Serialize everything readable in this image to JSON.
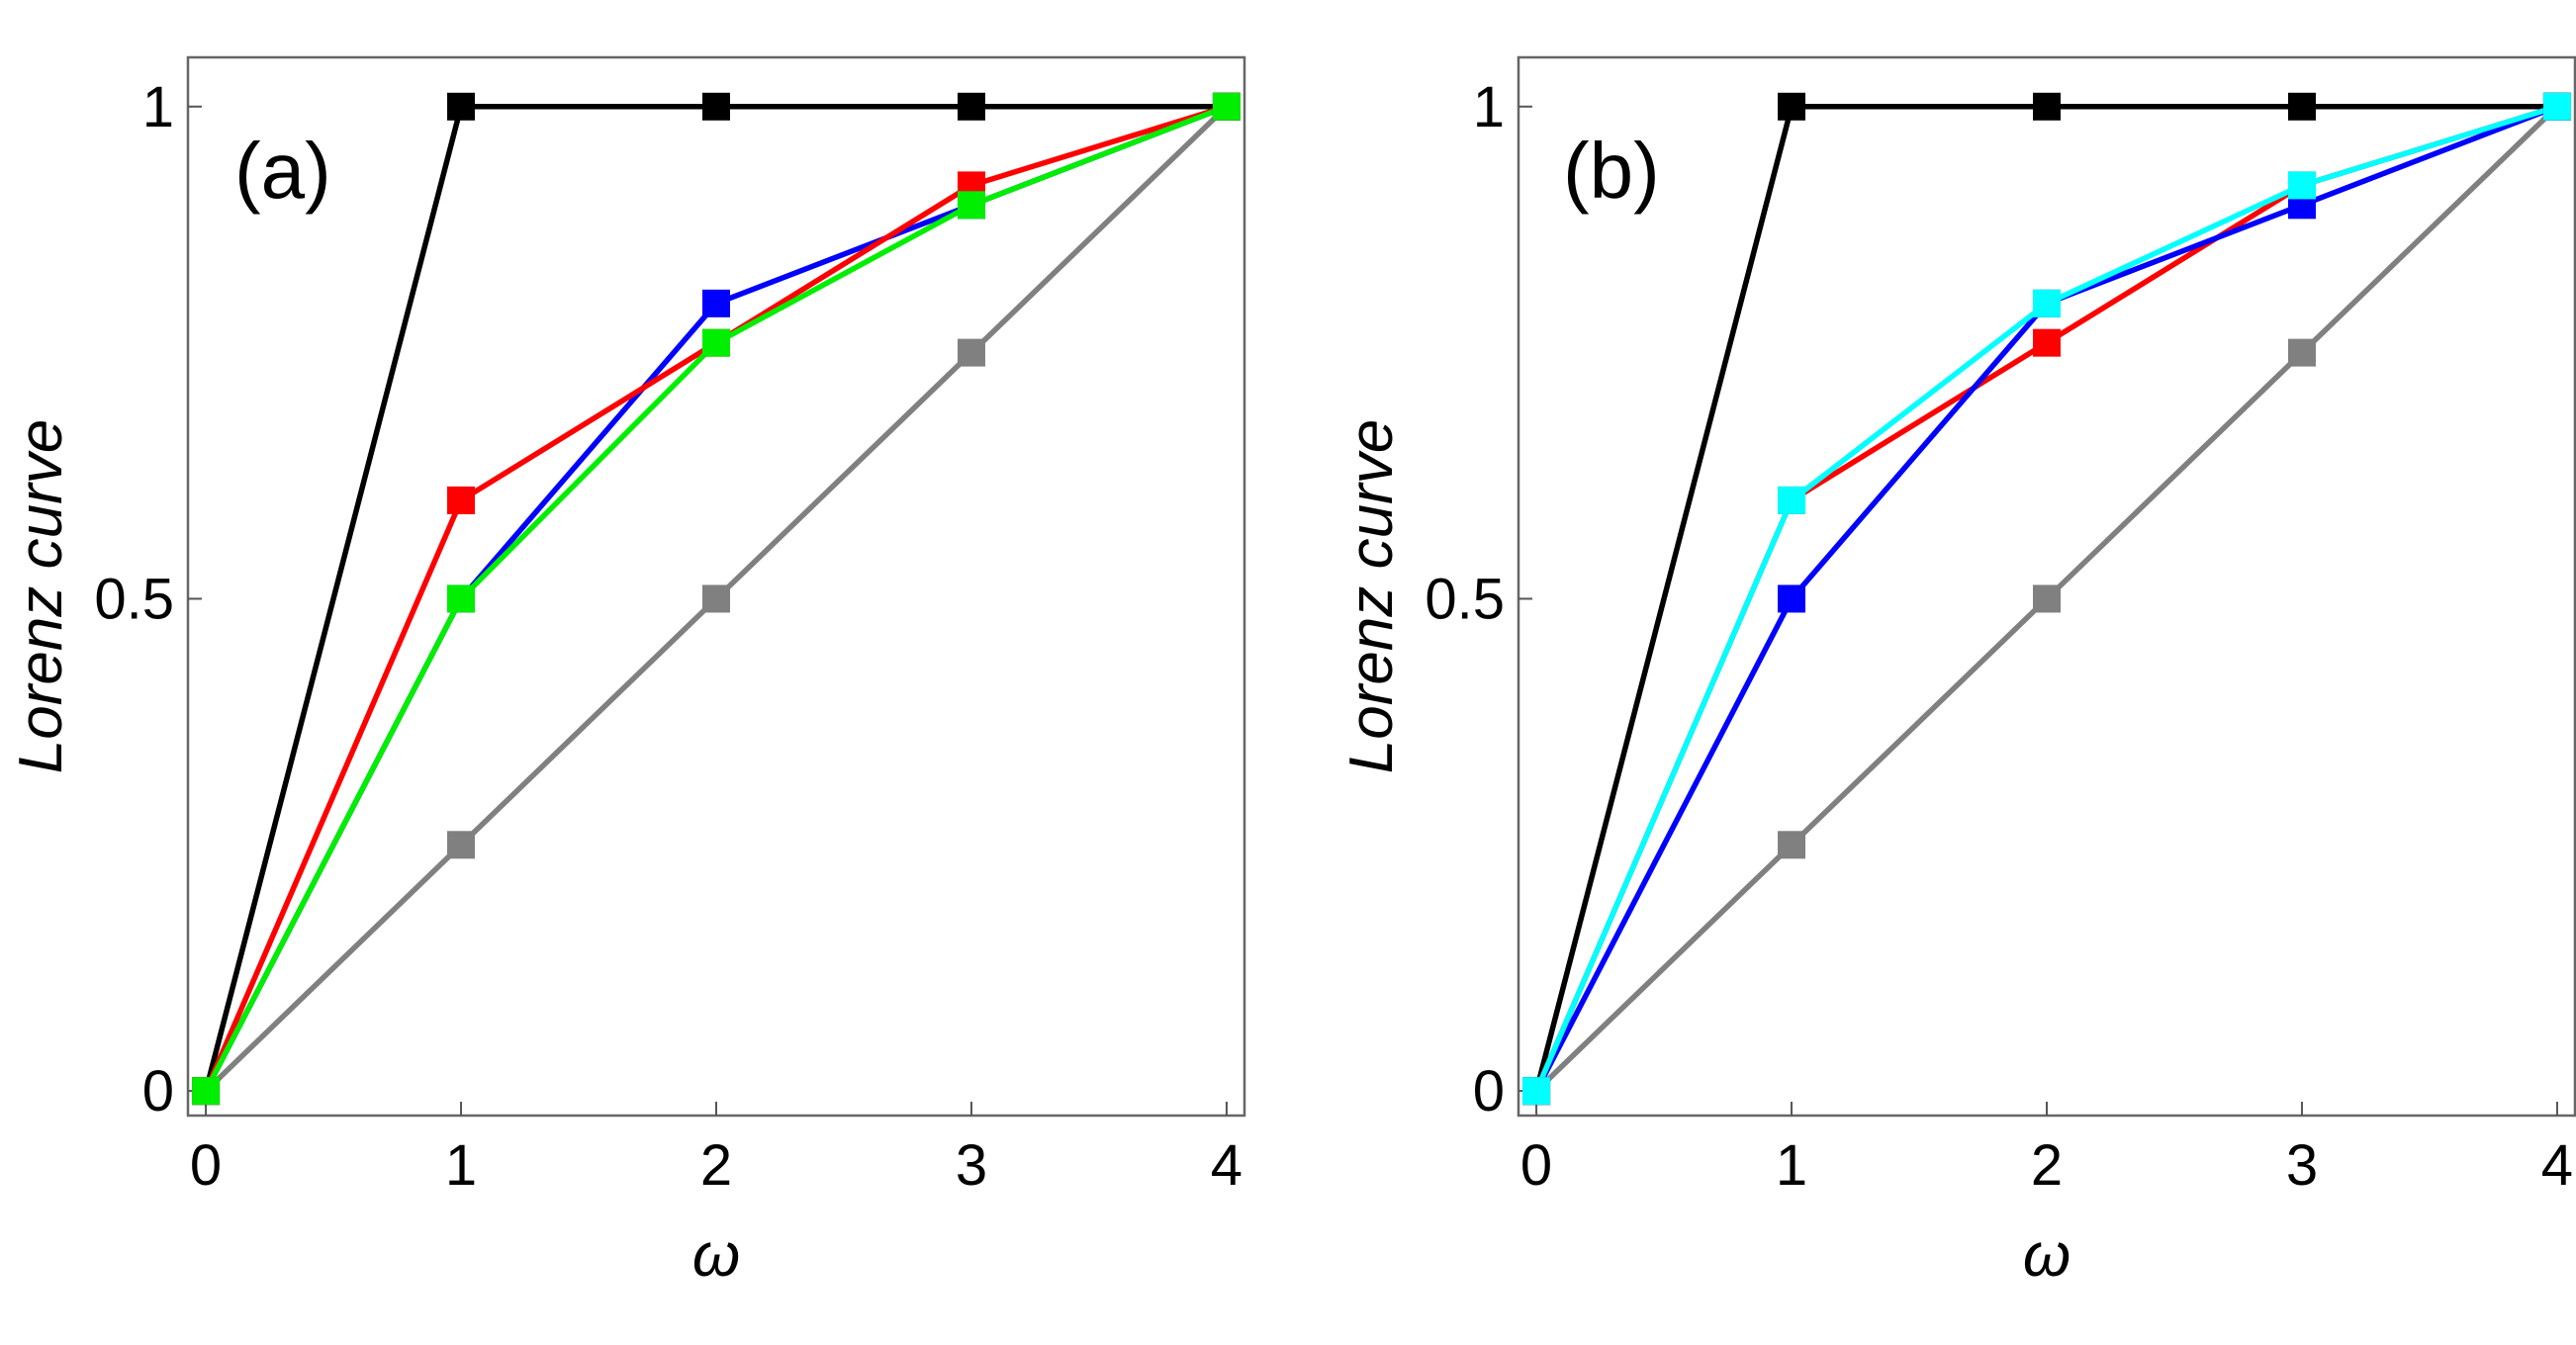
{
  "chart_data": [
    {
      "type": "line",
      "panel_label": "(a)",
      "xlabel": "ω",
      "ylabel": "Lorenz curve",
      "xlim": [
        -0.07,
        4.07
      ],
      "ylim": [
        -0.025,
        1.05
      ],
      "xticks": [
        0,
        1,
        2,
        3,
        4
      ],
      "xtick_labels": [
        "0",
        "1",
        "2",
        "3",
        "4"
      ],
      "yticks": [
        0,
        0.5,
        1
      ],
      "ytick_labels": [
        "0",
        "0.5",
        "1"
      ],
      "grid": false,
      "x": [
        0,
        1,
        2,
        3,
        4
      ],
      "series": [
        {
          "color": "#808080",
          "values": [
            0,
            0.25,
            0.5,
            0.75,
            1
          ]
        },
        {
          "color": "#000000",
          "values": [
            0,
            1,
            1,
            1,
            1
          ]
        },
        {
          "color": "#0000ff",
          "values": [
            0,
            0.5,
            0.8,
            0.9,
            1
          ]
        },
        {
          "color": "#ff0000",
          "values": [
            0,
            0.6,
            0.76,
            0.92,
            1
          ]
        },
        {
          "color": "#00ee00",
          "values": [
            0,
            0.5,
            0.76,
            0.9,
            1
          ]
        }
      ]
    },
    {
      "type": "line",
      "panel_label": "(b)",
      "xlabel": "ω",
      "ylabel": "Lorenz curve",
      "xlim": [
        -0.07,
        4.07
      ],
      "ylim": [
        -0.025,
        1.05
      ],
      "xticks": [
        0,
        1,
        2,
        3,
        4
      ],
      "xtick_labels": [
        "0",
        "1",
        "2",
        "3",
        "4"
      ],
      "yticks": [
        0,
        0.5,
        1
      ],
      "ytick_labels": [
        "0",
        "0.5",
        "1"
      ],
      "grid": false,
      "x": [
        0,
        1,
        2,
        3,
        4
      ],
      "series": [
        {
          "color": "#808080",
          "values": [
            0,
            0.25,
            0.5,
            0.75,
            1
          ]
        },
        {
          "color": "#000000",
          "values": [
            0,
            1,
            1,
            1,
            1
          ]
        },
        {
          "color": "#ff0000",
          "values": [
            0,
            0.6,
            0.76,
            0.92,
            1
          ]
        },
        {
          "color": "#0000ff",
          "values": [
            0,
            0.5,
            0.8,
            0.9,
            1
          ]
        },
        {
          "color": "#00ffff",
          "values": [
            0,
            0.6,
            0.8,
            0.92,
            1
          ]
        }
      ]
    }
  ]
}
